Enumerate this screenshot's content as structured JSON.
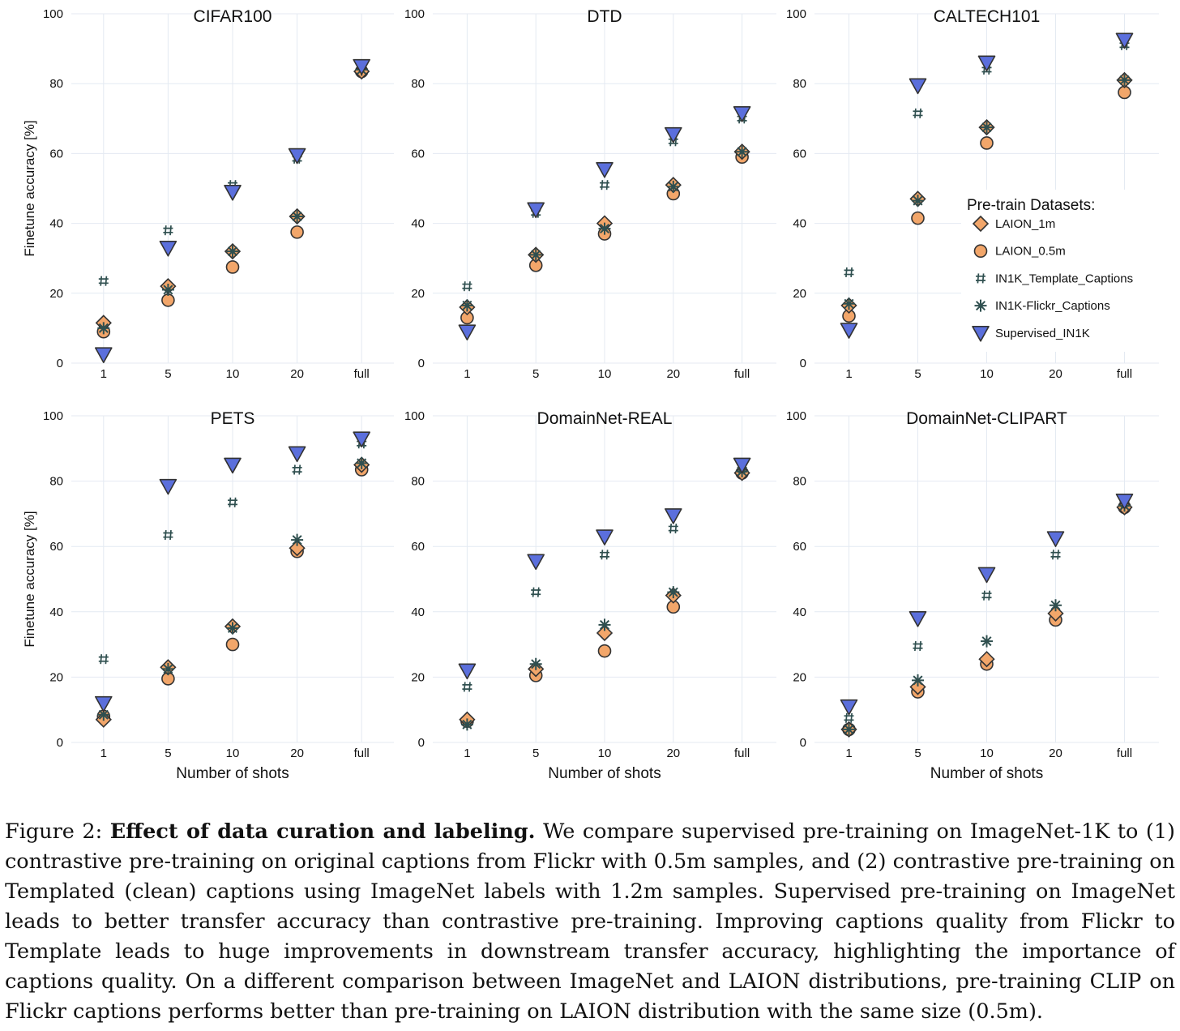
{
  "chart_data": [
    {
      "type": "scatter",
      "title": "CIFAR100",
      "ylabel": "Finetune accuracy [%]",
      "xlabel": "",
      "categories": [
        "1",
        "5",
        "10",
        "20",
        "full"
      ],
      "ylim": [
        0,
        100
      ],
      "yticks": [
        "0",
        "20",
        "40",
        "60",
        "80",
        "100"
      ],
      "grid": true,
      "series": [
        {
          "name": "LAION_1m",
          "values": [
            11.5,
            22,
            32,
            42,
            83.5
          ]
        },
        {
          "name": "LAION_0.5m",
          "values": [
            9,
            18,
            27.5,
            37.5,
            83.5
          ]
        },
        {
          "name": "IN1K_Template_Captions",
          "values": [
            23.5,
            38,
            51,
            58.5,
            85.5
          ]
        },
        {
          "name": "IN1K-Flickr_Captions",
          "values": [
            10,
            21,
            32,
            42,
            84
          ]
        },
        {
          "name": "Supervised_IN1K",
          "values": [
            2.5,
            33,
            49,
            59.5,
            85
          ]
        }
      ]
    },
    {
      "type": "scatter",
      "title": "DTD",
      "ylabel": "",
      "xlabel": "",
      "categories": [
        "1",
        "5",
        "10",
        "20",
        "full"
      ],
      "ylim": [
        0,
        100
      ],
      "yticks": [
        "0",
        "20",
        "40",
        "60",
        "80",
        "100"
      ],
      "grid": true,
      "series": [
        {
          "name": "LAION_1m",
          "values": [
            16,
            31,
            40,
            51,
            60.5
          ]
        },
        {
          "name": "LAION_0.5m",
          "values": [
            13,
            28,
            37,
            48.5,
            59
          ]
        },
        {
          "name": "IN1K_Template_Captions",
          "values": [
            22,
            43,
            51,
            63.5,
            70
          ]
        },
        {
          "name": "IN1K-Flickr_Captions",
          "values": [
            16.5,
            31,
            38.5,
            50.5,
            60.5
          ]
        },
        {
          "name": "Supervised_IN1K",
          "values": [
            9,
            44,
            55.5,
            65.5,
            71.5
          ]
        }
      ]
    },
    {
      "type": "scatter",
      "title": "CALTECH101",
      "ylabel": "",
      "xlabel": "",
      "categories": [
        "1",
        "5",
        "10",
        "20",
        "full"
      ],
      "ylim": [
        0,
        100
      ],
      "yticks": [
        "0",
        "20",
        "40",
        "60",
        "80",
        "100"
      ],
      "grid": true,
      "series": [
        {
          "name": "LAION_1m",
          "values": [
            16.5,
            47,
            67.5,
            null,
            81
          ]
        },
        {
          "name": "LAION_0.5m",
          "values": [
            13.5,
            41.5,
            63,
            null,
            77.5
          ]
        },
        {
          "name": "IN1K_Template_Captions",
          "values": [
            26,
            71.5,
            84,
            null,
            91
          ]
        },
        {
          "name": "IN1K-Flickr_Captions",
          "values": [
            17,
            46.5,
            67.5,
            null,
            81
          ]
        },
        {
          "name": "Supervised_IN1K",
          "values": [
            9.5,
            79.5,
            86,
            null,
            92.5
          ]
        }
      ],
      "legend": {
        "title": "Pre-train Datasets:",
        "position": "right",
        "entries": [
          "LAION_1m",
          "LAION_0.5m",
          "IN1K_Template_Captions",
          "IN1K-Flickr_Captions",
          "Supervised_IN1K"
        ]
      }
    },
    {
      "type": "scatter",
      "title": "PETS",
      "ylabel": "Finetune accuracy [%]",
      "xlabel": "Number of shots",
      "categories": [
        "1",
        "5",
        "10",
        "20",
        "full"
      ],
      "ylim": [
        0,
        100
      ],
      "yticks": [
        "0",
        "20",
        "40",
        "60",
        "80",
        "100"
      ],
      "grid": true,
      "series": [
        {
          "name": "LAION_1m",
          "values": [
            7,
            23,
            35.5,
            59.5,
            85
          ]
        },
        {
          "name": "LAION_0.5m",
          "values": [
            8,
            19.5,
            30,
            58.5,
            83.5
          ]
        },
        {
          "name": "IN1K_Template_Captions",
          "values": [
            25.5,
            63.5,
            73.5,
            83.5,
            91.5
          ]
        },
        {
          "name": "IN1K-Flickr_Captions",
          "values": [
            8.5,
            22.5,
            35,
            62,
            85.5
          ]
        },
        {
          "name": "Supervised_IN1K",
          "values": [
            12,
            78.5,
            85,
            88.5,
            93
          ]
        }
      ]
    },
    {
      "type": "scatter",
      "title": "DomainNet-REAL",
      "ylabel": "",
      "xlabel": "Number of shots",
      "categories": [
        "1",
        "5",
        "10",
        "20",
        "full"
      ],
      "ylim": [
        0,
        100
      ],
      "yticks": [
        "0",
        "20",
        "40",
        "60",
        "80",
        "100"
      ],
      "grid": true,
      "series": [
        {
          "name": "LAION_1m",
          "values": [
            7,
            22.5,
            33.5,
            45,
            82.5
          ]
        },
        {
          "name": "LAION_0.5m",
          "values": [
            6.5,
            20.5,
            28,
            41.5,
            82.5
          ]
        },
        {
          "name": "IN1K_Template_Captions",
          "values": [
            17,
            46,
            57.5,
            65.5,
            83.5
          ]
        },
        {
          "name": "IN1K-Flickr_Captions",
          "values": [
            5.5,
            24,
            36,
            46,
            83
          ]
        },
        {
          "name": "Supervised_IN1K",
          "values": [
            22,
            55.5,
            63,
            69.5,
            85
          ]
        }
      ]
    },
    {
      "type": "scatter",
      "title": "DomainNet-CLIPART",
      "ylabel": "",
      "xlabel": "Number of shots",
      "categories": [
        "1",
        "5",
        "10",
        "20",
        "full"
      ],
      "ylim": [
        0,
        100
      ],
      "yticks": [
        "0",
        "20",
        "40",
        "60",
        "80",
        "100"
      ],
      "grid": true,
      "series": [
        {
          "name": "LAION_1m",
          "values": [
            4,
            17,
            25.5,
            39.5,
            72
          ]
        },
        {
          "name": "LAION_0.5m",
          "values": [
            4,
            15.5,
            24,
            37.5,
            72
          ]
        },
        {
          "name": "IN1K_Template_Captions",
          "values": [
            7.5,
            29.5,
            45,
            57.5,
            73
          ]
        },
        {
          "name": "IN1K-Flickr_Captions",
          "values": [
            4,
            19,
            31,
            42,
            72.5
          ]
        },
        {
          "name": "Supervised_IN1K",
          "values": [
            11,
            38,
            51.5,
            62.5,
            74
          ]
        }
      ]
    }
  ],
  "series_styles": {
    "LAION_1m": {
      "marker": "diamond",
      "color": "#f2a66a"
    },
    "LAION_0.5m": {
      "marker": "circle",
      "color": "#f2a66a"
    },
    "IN1K_Template_Captions": {
      "marker": "hash",
      "color": "#2f4f4f"
    },
    "IN1K-Flickr_Captions": {
      "marker": "asterisk",
      "color": "#2f4f4f"
    },
    "Supervised_IN1K": {
      "marker": "triangle-down",
      "color": "#5b6fdc"
    }
  },
  "caption": {
    "label": "Figure 2:",
    "bold": "Effect of data curation and labeling.",
    "text": "We compare supervised pre-training on ImageNet-1K to (1) contrastive pre-training on original captions from Flickr with 0.5m samples, and (2) contrastive pre-training on Templated (clean) captions using ImageNet labels with 1.2m samples. Supervised pre-training on ImageNet leads to better transfer accuracy than contrastive pre-training. Improving captions quality from Flickr to Template leads to huge improvements in downstream transfer accuracy, highlighting the importance of captions quality. On a different comparison between ImageNet and LAION distributions, pre-training CLIP on Flickr captions performs better than pre-training on LAION distribution with the same size (0.5m)."
  }
}
